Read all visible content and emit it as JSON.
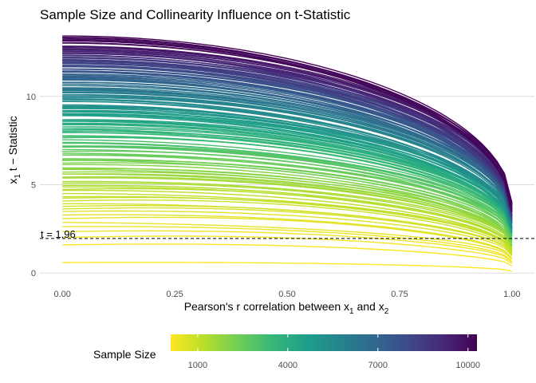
{
  "chart_data": {
    "type": "line",
    "title": "Sample Size and Collinearity Influence on t-Statistic",
    "xlabel": {
      "main": "Pearson's r correlation between x",
      "sub1": "1",
      "mid": " and x",
      "sub2": "2"
    },
    "ylabel": {
      "main": "x",
      "sub": "1",
      "rest": " t − Statistic"
    },
    "x_ticks": [
      0.0,
      0.25,
      0.5,
      0.75,
      1.0
    ],
    "x_tick_labels": [
      "0.00",
      "0.25",
      "0.50",
      "0.75",
      "1.00"
    ],
    "y_ticks": [
      0,
      5,
      10
    ],
    "y_tick_labels": [
      "0",
      "5",
      "10"
    ],
    "xlim": [
      -0.05,
      1.05
    ],
    "ylim": [
      -0.35,
      14.1
    ],
    "grid": "horizontal-major",
    "reference_line": {
      "y": 1.96,
      "style": "dashed",
      "label": "t = 1.96"
    },
    "series_encoding": "one line per sample size, colored by sample size (viridis)",
    "sample_size_range": [
      100,
      10300
    ],
    "series_count": 160,
    "series_model": {
      "t_at_r0_for_n100": 0.6,
      "t_at_r0_for_n10300": 13.3,
      "t_at_r1_for_n100": 0.1,
      "t_at_r1_for_n10300": 3.8
    },
    "legend": {
      "title": "Sample Size",
      "position": "bottom",
      "ticks": [
        1000,
        4000,
        7000,
        10000
      ],
      "tick_labels": [
        "1000",
        "4000",
        "7000",
        "10000"
      ],
      "range": [
        100,
        10300
      ],
      "palette": [
        "#fde725",
        "#b5de2b",
        "#6ece58",
        "#35b779",
        "#1f9e89",
        "#26828e",
        "#31688e",
        "#3e4989",
        "#482878",
        "#440154"
      ]
    }
  }
}
